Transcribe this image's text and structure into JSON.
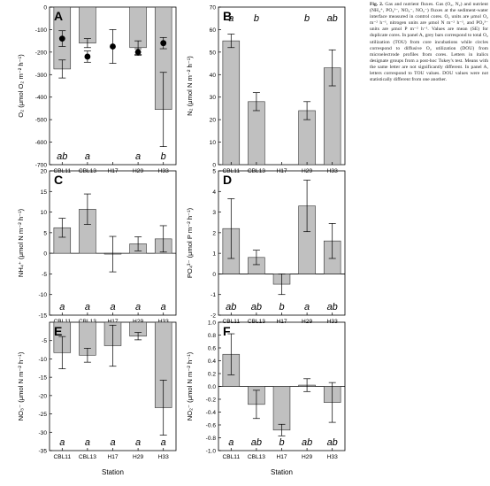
{
  "caption": {
    "label": "Fig. 2.",
    "text": "Gas and nutrient fluxes. Gas (O₂, N₂) and nutrient (NH₄⁺, PO₄³⁻, NO₃⁻, NO₂⁻) fluxes at the sediment-water interface measured in control cores. O₂ units are μmol O₂ m⁻² h⁻¹, nitrogen units are μmol N m⁻² h⁻¹, and PO₄³⁻ units are μmol P m⁻² h⁻¹. Values are mean (SE) for duplicate cores. In panel A, grey bars correspond to total O₂ utilization (TOU) from core incubations while circles correspond to diffusive O₂ utilization (DOU) from microelectrode profiles from cores. Letters in italics designate groups from a post-hoc Tukey's test. Means with the same letter are not significantly different. In panel A, letters correspond to TOU values. DOU values were not statistically different from one another."
  },
  "colors": {
    "bar": "#c0c0c0",
    "bar_stroke": "#333333",
    "marker": "#000000"
  },
  "chart_data": [
    {
      "panel": "A",
      "type": "bar",
      "categories": [
        "CBL11",
        "CBL13",
        "H17",
        "H29",
        "H33"
      ],
      "series": [
        {
          "name": "TOU",
          "values": [
            -275,
            -160,
            null,
            -180,
            -455
          ],
          "errors": [
            40,
            20,
            null,
            30,
            165
          ]
        },
        {
          "name": "DOU",
          "type": "scatter",
          "values": [
            -140,
            -220,
            -175,
            -200,
            -160
          ],
          "errors": [
            35,
            25,
            75,
            15,
            25
          ]
        }
      ],
      "letters": [
        "ab",
        "a",
        "",
        "a",
        "b"
      ],
      "ylabel": "O₂ (μmol O₂ m⁻² h⁻¹)",
      "xlabel": "",
      "ylim": [
        -700,
        0
      ],
      "yticks": [
        0,
        -100,
        -200,
        -300,
        -400,
        -500,
        -600,
        -700
      ]
    },
    {
      "panel": "B",
      "type": "bar",
      "categories": [
        "CBL11",
        "CBL13",
        "H17",
        "H29",
        "H33"
      ],
      "series": [
        {
          "values": [
            55,
            28,
            null,
            24,
            43
          ],
          "errors": [
            3,
            4,
            null,
            4,
            8
          ]
        }
      ],
      "letters": [
        "a",
        "b",
        "",
        "b",
        "ab"
      ],
      "ylabel": "N₂ (μmol N m⁻² h⁻¹)",
      "xlabel": "",
      "ylim": [
        0,
        70
      ],
      "yticks": [
        0,
        10,
        20,
        30,
        40,
        50,
        60,
        70
      ]
    },
    {
      "panel": "C",
      "type": "bar",
      "categories": [
        "CBL11",
        "CBL13",
        "H17",
        "H29",
        "H33"
      ],
      "series": [
        {
          "values": [
            6.2,
            10.7,
            -0.2,
            2.3,
            3.5
          ],
          "errors": [
            2.3,
            3.7,
            4.3,
            1.7,
            3.2
          ]
        }
      ],
      "letters": [
        "a",
        "a",
        "a",
        "a",
        "a"
      ],
      "ylabel": "NH₄⁺ (μmol N m⁻² h⁻¹)",
      "xlabel": "",
      "ylim": [
        -15,
        20
      ],
      "yticks": [
        20,
        15,
        10,
        5,
        0,
        -5,
        -10,
        -15
      ]
    },
    {
      "panel": "D",
      "type": "bar",
      "categories": [
        "CBL11",
        "CBL13",
        "H17",
        "H29",
        "H33"
      ],
      "series": [
        {
          "values": [
            2.2,
            0.8,
            -0.5,
            3.3,
            1.6
          ],
          "errors": [
            1.45,
            0.35,
            0.5,
            1.25,
            0.85
          ]
        }
      ],
      "letters": [
        "ab",
        "ab",
        "b",
        "a",
        "ab"
      ],
      "ylabel": "PO₄³⁻ (μmol P m⁻² h⁻¹)",
      "xlabel": "",
      "ylim": [
        -2,
        5
      ],
      "yticks": [
        5,
        4,
        3,
        2,
        1,
        0,
        -1,
        -2
      ]
    },
    {
      "panel": "E",
      "type": "bar",
      "categories": [
        "CBL11",
        "CBL13",
        "H17",
        "H29",
        "H33"
      ],
      "series": [
        {
          "values": [
            -8.3,
            -9.0,
            -6.4,
            -3.8,
            -23.3
          ],
          "errors": [
            4.4,
            1.9,
            5.6,
            1.0,
            7.5
          ]
        }
      ],
      "letters": [
        "a",
        "a",
        "a",
        "a",
        "a"
      ],
      "ylabel": "NO₃⁻ (μmol N m⁻² h⁻¹)",
      "xlabel": "Station",
      "ylim": [
        -35,
        0
      ],
      "yticks": [
        -5,
        -10,
        -15,
        -20,
        -25,
        -30,
        -35
      ]
    },
    {
      "panel": "F",
      "type": "bar",
      "categories": [
        "CBL11",
        "CBL13",
        "H17",
        "H29",
        "H33"
      ],
      "series": [
        {
          "values": [
            0.5,
            -0.28,
            -0.68,
            0.02,
            -0.25
          ],
          "errors": [
            0.32,
            0.22,
            0.09,
            0.1,
            0.31
          ]
        }
      ],
      "letters": [
        "a",
        "ab",
        "b",
        "ab",
        "ab"
      ],
      "ylabel": "NO₂⁻ (μmol N m⁻² h⁻¹)",
      "xlabel": "Station",
      "ylim": [
        -1.0,
        1.0
      ],
      "yticks": [
        1.0,
        0.8,
        0.6,
        0.4,
        0.2,
        0.0,
        -0.2,
        -0.4,
        -0.6,
        -0.8,
        -1.0
      ]
    }
  ]
}
